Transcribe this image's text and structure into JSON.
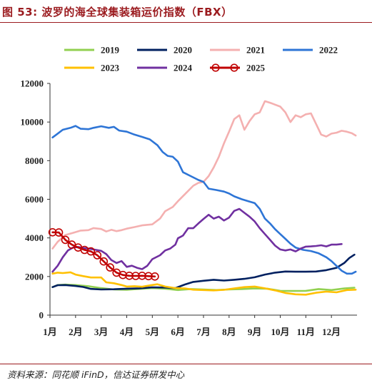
{
  "title": "图 53:  波罗的海全球集装箱运价指数（FBX）",
  "source": "资料来源：同花顺 iFinD，信达证券研发中心",
  "chart_data": {
    "type": "line",
    "xlabel": "",
    "ylabel": "",
    "ylim": [
      0,
      12000
    ],
    "yticks": [
      0,
      2000,
      4000,
      6000,
      8000,
      10000,
      12000
    ],
    "x_ticks": [
      {
        "label": "1月",
        "x": 1
      },
      {
        "label": "2月",
        "x": 2
      },
      {
        "label": "3月",
        "x": 3
      },
      {
        "label": "4月",
        "x": 4
      },
      {
        "label": "5月",
        "x": 5
      },
      {
        "label": "6月",
        "x": 6
      },
      {
        "label": "7月",
        "x": 7
      },
      {
        "label": "8月",
        "x": 8
      },
      {
        "label": "9月",
        "x": 9
      },
      {
        "label": "10月",
        "x": 10
      },
      {
        "label": "11月",
        "x": 11
      },
      {
        "label": "12月",
        "x": 12
      }
    ],
    "xlim": [
      1,
      13
    ],
    "grid": false,
    "legend_position": "top",
    "series": [
      {
        "name": "2019",
        "color": "#92d050",
        "marker": "none",
        "points": [
          [
            1.1,
            1450
          ],
          [
            1.3,
            1560
          ],
          [
            1.6,
            1580
          ],
          [
            2.0,
            1560
          ],
          [
            2.5,
            1500
          ],
          [
            3.0,
            1400
          ],
          [
            3.5,
            1330
          ],
          [
            4.0,
            1310
          ],
          [
            4.5,
            1360
          ],
          [
            5.0,
            1400
          ],
          [
            5.5,
            1370
          ],
          [
            6.0,
            1300
          ],
          [
            6.5,
            1350
          ],
          [
            7.0,
            1330
          ],
          [
            7.5,
            1300
          ],
          [
            8.0,
            1330
          ],
          [
            8.5,
            1350
          ],
          [
            9.0,
            1380
          ],
          [
            9.5,
            1370
          ],
          [
            10.0,
            1260
          ],
          [
            10.5,
            1250
          ],
          [
            11.0,
            1260
          ],
          [
            11.5,
            1350
          ],
          [
            12.0,
            1300
          ],
          [
            12.5,
            1380
          ],
          [
            12.9,
            1420
          ]
        ]
      },
      {
        "name": "2020",
        "color": "#002060",
        "marker": "none",
        "points": [
          [
            1.1,
            1450
          ],
          [
            1.3,
            1550
          ],
          [
            1.6,
            1560
          ],
          [
            2.0,
            1510
          ],
          [
            2.3,
            1460
          ],
          [
            2.6,
            1360
          ],
          [
            3.0,
            1330
          ],
          [
            3.5,
            1340
          ],
          [
            4.0,
            1370
          ],
          [
            4.5,
            1390
          ],
          [
            5.0,
            1440
          ],
          [
            5.5,
            1430
          ],
          [
            5.9,
            1400
          ],
          [
            6.3,
            1600
          ],
          [
            6.6,
            1720
          ],
          [
            7.0,
            1780
          ],
          [
            7.4,
            1830
          ],
          [
            7.8,
            1790
          ],
          [
            8.2,
            1830
          ],
          [
            8.6,
            1880
          ],
          [
            9.0,
            1960
          ],
          [
            9.4,
            2100
          ],
          [
            9.8,
            2200
          ],
          [
            10.2,
            2260
          ],
          [
            10.6,
            2250
          ],
          [
            11.0,
            2250
          ],
          [
            11.4,
            2260
          ],
          [
            11.8,
            2330
          ],
          [
            12.2,
            2450
          ],
          [
            12.5,
            2700
          ],
          [
            12.7,
            2960
          ],
          [
            12.9,
            3130
          ]
        ]
      },
      {
        "name": "2021",
        "color": "#f4b0b0",
        "marker": "none",
        "points": [
          [
            1.1,
            3450
          ],
          [
            1.3,
            3800
          ],
          [
            1.6,
            4150
          ],
          [
            1.9,
            4260
          ],
          [
            2.2,
            4380
          ],
          [
            2.5,
            4400
          ],
          [
            2.7,
            4510
          ],
          [
            3.0,
            4460
          ],
          [
            3.2,
            4330
          ],
          [
            3.4,
            4420
          ],
          [
            3.6,
            4350
          ],
          [
            3.8,
            4400
          ],
          [
            4.0,
            4480
          ],
          [
            4.3,
            4560
          ],
          [
            4.6,
            4650
          ],
          [
            5.0,
            4700
          ],
          [
            5.3,
            5000
          ],
          [
            5.5,
            5380
          ],
          [
            5.8,
            5600
          ],
          [
            6.0,
            5900
          ],
          [
            6.3,
            6300
          ],
          [
            6.6,
            6700
          ],
          [
            6.8,
            6850
          ],
          [
            7.0,
            6900
          ],
          [
            7.2,
            7200
          ],
          [
            7.4,
            7650
          ],
          [
            7.6,
            8200
          ],
          [
            7.8,
            8900
          ],
          [
            8.0,
            9500
          ],
          [
            8.2,
            10150
          ],
          [
            8.4,
            10350
          ],
          [
            8.6,
            9600
          ],
          [
            8.8,
            10050
          ],
          [
            9.0,
            10400
          ],
          [
            9.2,
            10500
          ],
          [
            9.4,
            11080
          ],
          [
            9.6,
            11000
          ],
          [
            9.8,
            10900
          ],
          [
            10.0,
            10800
          ],
          [
            10.2,
            10500
          ],
          [
            10.4,
            10000
          ],
          [
            10.6,
            10350
          ],
          [
            10.8,
            10250
          ],
          [
            11.0,
            10400
          ],
          [
            11.2,
            10450
          ],
          [
            11.4,
            9900
          ],
          [
            11.6,
            9350
          ],
          [
            11.8,
            9250
          ],
          [
            12.0,
            9400
          ],
          [
            12.2,
            9450
          ],
          [
            12.4,
            9550
          ],
          [
            12.6,
            9500
          ],
          [
            12.8,
            9420
          ],
          [
            12.95,
            9300
          ]
        ]
      },
      {
        "name": "2022",
        "color": "#2e75d6",
        "marker": "none",
        "points": [
          [
            1.1,
            9200
          ],
          [
            1.3,
            9400
          ],
          [
            1.5,
            9600
          ],
          [
            1.8,
            9700
          ],
          [
            2.0,
            9800
          ],
          [
            2.2,
            9650
          ],
          [
            2.5,
            9630
          ],
          [
            2.7,
            9700
          ],
          [
            3.0,
            9780
          ],
          [
            3.3,
            9700
          ],
          [
            3.5,
            9750
          ],
          [
            3.7,
            9560
          ],
          [
            4.0,
            9500
          ],
          [
            4.3,
            9350
          ],
          [
            4.6,
            9230
          ],
          [
            4.9,
            9100
          ],
          [
            5.2,
            8800
          ],
          [
            5.4,
            8450
          ],
          [
            5.6,
            8250
          ],
          [
            5.8,
            8200
          ],
          [
            6.0,
            7950
          ],
          [
            6.2,
            7400
          ],
          [
            6.5,
            7200
          ],
          [
            6.8,
            7000
          ],
          [
            7.0,
            6900
          ],
          [
            7.2,
            6550
          ],
          [
            7.5,
            6480
          ],
          [
            7.8,
            6400
          ],
          [
            8.0,
            6300
          ],
          [
            8.2,
            6150
          ],
          [
            8.5,
            6000
          ],
          [
            8.8,
            5880
          ],
          [
            9.0,
            5800
          ],
          [
            9.2,
            5500
          ],
          [
            9.4,
            5000
          ],
          [
            9.6,
            4750
          ],
          [
            9.8,
            4450
          ],
          [
            10.0,
            4200
          ],
          [
            10.2,
            3950
          ],
          [
            10.4,
            3700
          ],
          [
            10.6,
            3500
          ],
          [
            10.9,
            3380
          ],
          [
            11.2,
            3320
          ],
          [
            11.5,
            3200
          ],
          [
            11.8,
            3000
          ],
          [
            12.0,
            2800
          ],
          [
            12.2,
            2550
          ],
          [
            12.4,
            2300
          ],
          [
            12.6,
            2150
          ],
          [
            12.8,
            2150
          ],
          [
            12.95,
            2250
          ]
        ]
      },
      {
        "name": "2023",
        "color": "#ffc000",
        "marker": "none",
        "points": [
          [
            1.1,
            2150
          ],
          [
            1.3,
            2200
          ],
          [
            1.5,
            2180
          ],
          [
            1.8,
            2220
          ],
          [
            2.0,
            2100
          ],
          [
            2.3,
            2020
          ],
          [
            2.6,
            1950
          ],
          [
            3.0,
            1950
          ],
          [
            3.2,
            1700
          ],
          [
            3.5,
            1650
          ],
          [
            3.8,
            1560
          ],
          [
            4.0,
            1480
          ],
          [
            4.3,
            1500
          ],
          [
            4.6,
            1470
          ],
          [
            4.9,
            1540
          ],
          [
            5.2,
            1600
          ],
          [
            5.5,
            1480
          ],
          [
            5.9,
            1400
          ],
          [
            6.3,
            1380
          ],
          [
            6.6,
            1320
          ],
          [
            7.0,
            1300
          ],
          [
            7.4,
            1280
          ],
          [
            7.8,
            1310
          ],
          [
            8.2,
            1380
          ],
          [
            8.6,
            1450
          ],
          [
            9.0,
            1480
          ],
          [
            9.4,
            1390
          ],
          [
            9.8,
            1280
          ],
          [
            10.2,
            1150
          ],
          [
            10.6,
            1080
          ],
          [
            11.0,
            1060
          ],
          [
            11.4,
            1160
          ],
          [
            11.8,
            1220
          ],
          [
            12.2,
            1180
          ],
          [
            12.6,
            1300
          ],
          [
            12.95,
            1320
          ]
        ]
      },
      {
        "name": "2024",
        "color": "#7030a0",
        "marker": "none",
        "points": [
          [
            1.1,
            2250
          ],
          [
            1.3,
            2560
          ],
          [
            1.5,
            3000
          ],
          [
            1.7,
            3350
          ],
          [
            1.9,
            3500
          ],
          [
            2.1,
            3530
          ],
          [
            2.3,
            3480
          ],
          [
            2.5,
            3450
          ],
          [
            2.8,
            3380
          ],
          [
            3.0,
            3330
          ],
          [
            3.2,
            3160
          ],
          [
            3.4,
            2850
          ],
          [
            3.6,
            2700
          ],
          [
            3.8,
            2800
          ],
          [
            4.0,
            2500
          ],
          [
            4.2,
            2560
          ],
          [
            4.4,
            2450
          ],
          [
            4.6,
            2380
          ],
          [
            4.8,
            2550
          ],
          [
            5.0,
            2900
          ],
          [
            5.3,
            3100
          ],
          [
            5.5,
            3350
          ],
          [
            5.7,
            3450
          ],
          [
            5.9,
            3650
          ],
          [
            6.0,
            3980
          ],
          [
            6.2,
            4120
          ],
          [
            6.4,
            4500
          ],
          [
            6.6,
            4500
          ],
          [
            6.8,
            4750
          ],
          [
            7.0,
            4980
          ],
          [
            7.2,
            5200
          ],
          [
            7.4,
            5000
          ],
          [
            7.6,
            5100
          ],
          [
            7.8,
            4900
          ],
          [
            8.0,
            5050
          ],
          [
            8.2,
            5400
          ],
          [
            8.4,
            5500
          ],
          [
            8.6,
            5300
          ],
          [
            8.8,
            5100
          ],
          [
            9.0,
            4850
          ],
          [
            9.2,
            4500
          ],
          [
            9.4,
            4200
          ],
          [
            9.6,
            3900
          ],
          [
            9.8,
            3600
          ],
          [
            10.0,
            3400
          ],
          [
            10.2,
            3350
          ],
          [
            10.4,
            3400
          ],
          [
            10.6,
            3300
          ],
          [
            10.8,
            3450
          ],
          [
            11.0,
            3550
          ],
          [
            11.2,
            3560
          ],
          [
            11.4,
            3580
          ],
          [
            11.6,
            3620
          ],
          [
            11.8,
            3560
          ],
          [
            12.0,
            3650
          ],
          [
            12.2,
            3650
          ],
          [
            12.4,
            3680
          ]
        ]
      },
      {
        "name": "2025",
        "color": "#c00000",
        "marker": "circle",
        "points": [
          [
            1.1,
            4290
          ],
          [
            1.35,
            4280
          ],
          [
            1.6,
            3900
          ],
          [
            1.85,
            3650
          ],
          [
            2.1,
            3500
          ],
          [
            2.35,
            3380
          ],
          [
            2.6,
            3300
          ],
          [
            2.85,
            3100
          ],
          [
            3.1,
            2780
          ],
          [
            3.35,
            2470
          ],
          [
            3.6,
            2200
          ],
          [
            3.85,
            2080
          ],
          [
            4.1,
            2040
          ],
          [
            4.35,
            2030
          ],
          [
            4.6,
            2040
          ],
          [
            4.85,
            2020
          ],
          [
            5.1,
            2000
          ]
        ]
      }
    ]
  }
}
